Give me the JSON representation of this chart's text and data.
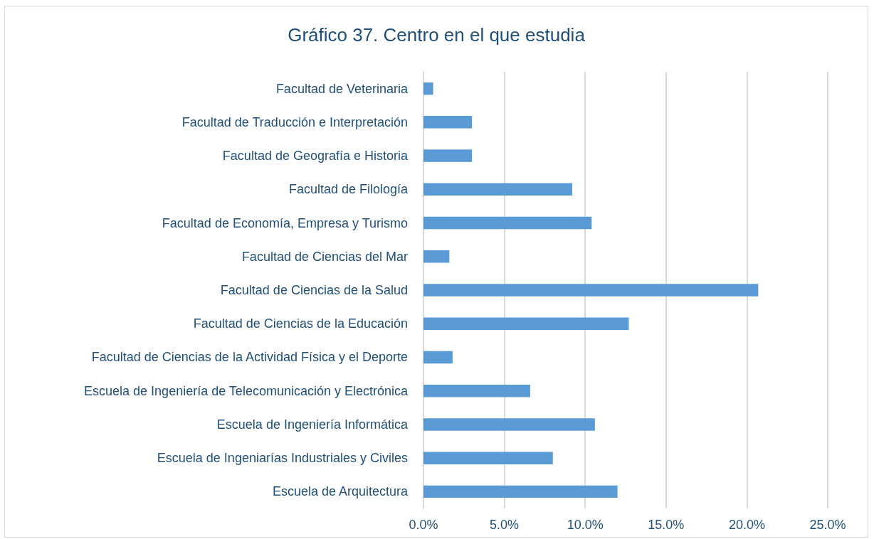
{
  "chart_data": {
    "type": "bar",
    "orientation": "horizontal",
    "title": "Gráfico 37. Centro en el que estudia",
    "categories": [
      "Facultad de Veterinaria",
      "Facultad de Traducción e Interpretación",
      "Facultad de Geografía e Historia",
      "Facultad de Filología",
      "Facultad de Economía, Empresa y Turismo",
      "Facultad de Ciencias del Mar",
      "Facultad de Ciencias de la Salud",
      "Facultad de Ciencias de la Educación",
      "Facultad de Ciencias de la Actividad Física y el Deporte",
      "Escuela de Ingeniería de Telecomunicación y Electrónica",
      "Escuela de Ingeniería Informática",
      "Escuela de Ingeniarías Industriales y Civiles",
      "Escuela de Arquitectura"
    ],
    "values": [
      0.6,
      3.0,
      3.0,
      9.2,
      10.4,
      1.6,
      20.7,
      12.7,
      1.8,
      6.6,
      10.6,
      8.0,
      12.0
    ],
    "color": "#5b9bd5",
    "xlim": [
      0,
      25
    ],
    "xticks": [
      {
        "value": 0,
        "label": "0.0%"
      },
      {
        "value": 5,
        "label": "5.0%"
      },
      {
        "value": 10,
        "label": "10.0%"
      },
      {
        "value": 15,
        "label": "15.0%"
      },
      {
        "value": 20,
        "label": "20.0%"
      },
      {
        "value": 25,
        "label": "25.0%"
      }
    ],
    "grid": "x"
  }
}
